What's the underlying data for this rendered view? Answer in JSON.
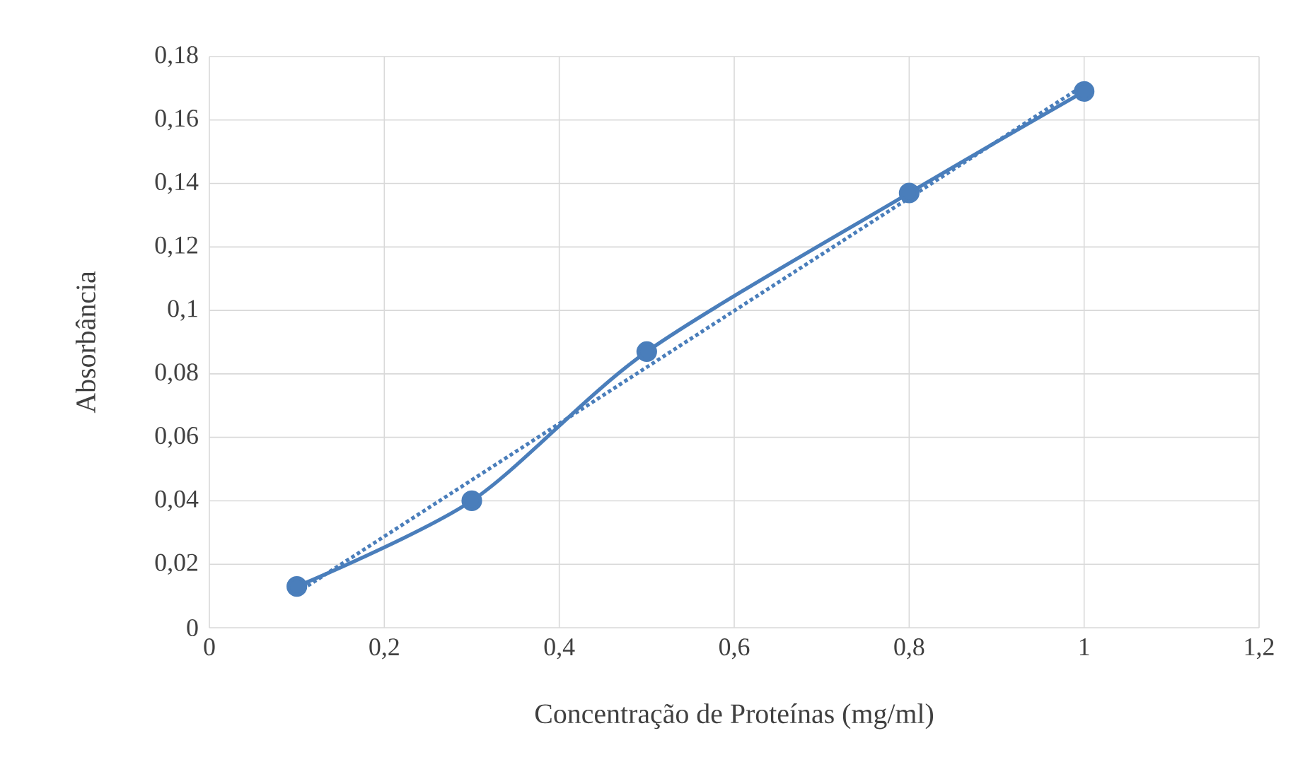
{
  "chart_data": {
    "type": "line",
    "xlabel": "Concentração de Proteínas (mg/ml)",
    "ylabel": "Absorbância",
    "xlim": [
      0,
      1.2
    ],
    "ylim": [
      0,
      0.18
    ],
    "xticks": [
      0,
      {
        "value": 0.2,
        "label": "0,2"
      },
      {
        "value": 0.4,
        "label": "0,4"
      },
      {
        "value": 0.6,
        "label": "0,6"
      },
      {
        "value": 0.8,
        "label": "0,8"
      },
      1,
      {
        "value": 1.2,
        "label": "1,2"
      }
    ],
    "yticks": [
      0,
      {
        "value": 0.02,
        "label": "0,02"
      },
      {
        "value": 0.04,
        "label": "0,04"
      },
      {
        "value": 0.06,
        "label": "0,06"
      },
      {
        "value": 0.08,
        "label": "0,08"
      },
      {
        "value": 0.1,
        "label": "0,1"
      },
      {
        "value": 0.12,
        "label": "0,12"
      },
      {
        "value": 0.14,
        "label": "0,14"
      },
      {
        "value": 0.16,
        "label": "0,16"
      },
      {
        "value": 0.18,
        "label": "0,18"
      }
    ],
    "grid": true,
    "legend": false,
    "series": [
      {
        "color": "#4a7ebb",
        "x": [
          0.1,
          0.3,
          0.5,
          0.8,
          1
        ],
        "values": [
          0.013,
          0.04,
          0.087,
          0.137,
          0.169
        ],
        "marker": "circle",
        "line_style": "solid"
      },
      {
        "color": "#4a7ebb",
        "x": [
          0.1,
          1
        ],
        "values": [
          0.011,
          0.171
        ],
        "marker": "none",
        "line_style": "dotted"
      }
    ]
  }
}
